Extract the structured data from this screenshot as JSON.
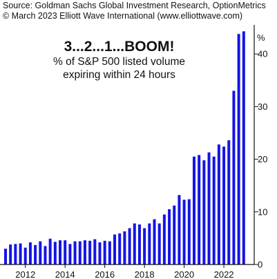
{
  "header": {
    "source_line": "Source: Goldman Sachs Global Investment Research, OptionMetrics",
    "copyright_line": "© March 2023 Elliott Wave International (www.elliottwave.com)"
  },
  "chart_data": {
    "type": "bar",
    "title": "3...2...1...BOOM!",
    "subtitle_lines": [
      "% of S&P 500 listed volume",
      "expiring within 24 hours"
    ],
    "ylabel": "%",
    "ylim": [
      0,
      45
    ],
    "yticks": [
      0,
      10,
      20,
      30,
      40
    ],
    "ytick_labels": [
      "0",
      "10",
      "20",
      "30",
      "40"
    ],
    "xlim": [
      2011.0,
      2023.25
    ],
    "xticks": [
      2012,
      2014,
      2016,
      2018,
      2020,
      2022
    ],
    "xtick_labels": [
      "2012",
      "2014",
      "2016",
      "2018",
      "2020",
      "2022"
    ],
    "bar_color": "#1414e6",
    "grid": false,
    "series": [
      {
        "x": [
          2011.0,
          2011.25,
          2011.5,
          2011.75,
          2012.0,
          2012.25,
          2012.5,
          2012.75,
          2013.0,
          2013.25,
          2013.5,
          2013.75,
          2014.0,
          2014.25,
          2014.5,
          2014.75,
          2015.0,
          2015.25,
          2015.5,
          2015.75,
          2016.0,
          2016.25,
          2016.5,
          2016.75,
          2017.0,
          2017.25,
          2017.5,
          2017.75,
          2018.0,
          2018.25,
          2018.5,
          2018.75,
          2019.0,
          2019.25,
          2019.5,
          2019.75,
          2020.0,
          2020.25,
          2020.5,
          2020.75,
          2021.0,
          2021.25,
          2021.5,
          2021.75,
          2022.0,
          2022.25,
          2022.5,
          2022.75
        ],
        "values": [
          3.0,
          3.8,
          3.9,
          4.0,
          3.2,
          4.2,
          3.7,
          4.4,
          3.5,
          4.9,
          4.3,
          4.6,
          4.6,
          3.9,
          4.4,
          4.4,
          4.6,
          4.5,
          4.8,
          4.2,
          4.5,
          4.4,
          5.7,
          5.9,
          6.3,
          6.9,
          7.8,
          7.6,
          6.9,
          7.8,
          8.6,
          7.8,
          9.5,
          10.5,
          11.2,
          13.2,
          12.3,
          12.4,
          20.5,
          20.8,
          19.8,
          21.3,
          20.5,
          22.8,
          22.4,
          23.6,
          33.0,
          43.8
        ]
      }
    ],
    "extra_bars": [
      {
        "x": 2023.0,
        "value": 44.3
      }
    ]
  }
}
